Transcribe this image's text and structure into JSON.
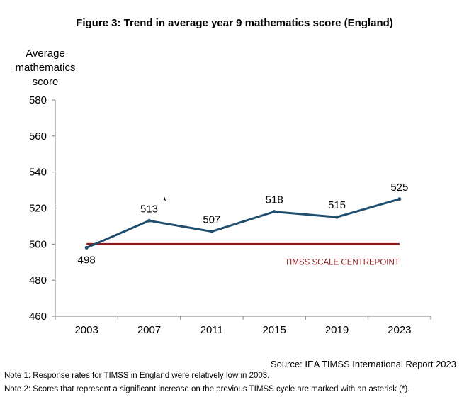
{
  "chart_data": {
    "type": "line",
    "title": "Figure 3: Trend in average year 9 mathematics score (England)",
    "ylabel": "Average\nmathematics\nscore",
    "xlabel": "",
    "x": [
      "2003",
      "2007",
      "2011",
      "2015",
      "2019",
      "2023"
    ],
    "series": [
      {
        "values": [
          498,
          513,
          507,
          518,
          515,
          525
        ],
        "labels": [
          "498",
          "513",
          "507",
          "518",
          "515",
          "525"
        ],
        "significant": [
          false,
          true,
          false,
          false,
          false,
          false
        ],
        "color": "#1f4e6e"
      }
    ],
    "reference_line": {
      "value": 500,
      "label": "TIMSS SCALE CENTREPOINT",
      "color": "#8b1a1a"
    },
    "ylim": [
      460,
      580
    ],
    "yticks": [
      460,
      480,
      500,
      520,
      540,
      560,
      580
    ],
    "significance_marker": "*",
    "grid": false,
    "legend": "none"
  },
  "source": "Source: IEA TIMSS International Report 2023",
  "notes": [
    "Note 1: Response rates for TIMSS in England were relatively low in 2003.",
    "Note 2: Scores that represent a significant increase on the previous TIMSS cycle are marked with an asterisk (*)."
  ]
}
